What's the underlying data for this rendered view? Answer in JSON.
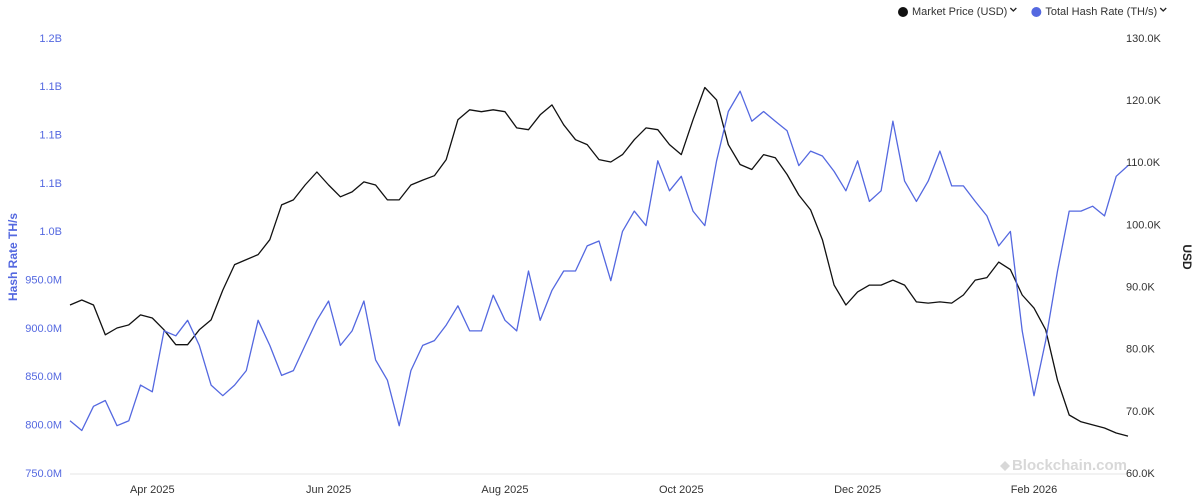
{
  "chart_data": {
    "type": "line",
    "y_label": "Hash Rate TH/s",
    "y2_label": "USD",
    "watermark": "Blockchain.com",
    "legend": "top-right",
    "categories": [
      null,
      null,
      null,
      null,
      null,
      null,
      null,
      "Apr 2025",
      null,
      null,
      null,
      null,
      null,
      null,
      null,
      null,
      null,
      null,
      null,
      null,
      null,
      null,
      "Jun 2025",
      null,
      null,
      null,
      null,
      null,
      null,
      null,
      null,
      null,
      null,
      null,
      null,
      null,
      null,
      "Aug 2025",
      null,
      null,
      null,
      null,
      null,
      null,
      null,
      null,
      null,
      null,
      null,
      null,
      null,
      null,
      "Oct 2025",
      null,
      null,
      null,
      null,
      null,
      null,
      null,
      null,
      null,
      null,
      null,
      null,
      null,
      null,
      "Dec 2025",
      null,
      null,
      null,
      null,
      null,
      null,
      null,
      null,
      null,
      null,
      null,
      null,
      null,
      null,
      "Feb 2026",
      null,
      null,
      null,
      null,
      null,
      null,
      null,
      null
    ],
    "ylim": [
      750000000,
      1200000000
    ],
    "yticks": [
      {
        "value": 750000000,
        "label": "750.0M"
      },
      {
        "value": 800000000,
        "label": "800.0M"
      },
      {
        "value": 850000000,
        "label": "850.0M"
      },
      {
        "value": 900000000,
        "label": "900.0M"
      },
      {
        "value": 950000000,
        "label": "950.0M"
      },
      {
        "value": 1000000000,
        "label": "1.0B"
      },
      {
        "value": 1050000000,
        "label": "1.1B"
      },
      {
        "value": 1100000000,
        "label": "1.1B"
      },
      {
        "value": 1150000000,
        "label": "1.1B"
      },
      {
        "value": 1200000000,
        "label": "1.2B"
      }
    ],
    "y2lim": [
      60000,
      130000
    ],
    "y2ticks": [
      {
        "value": 60000,
        "label": "60.0K"
      },
      {
        "value": 70000,
        "label": "70.0K"
      },
      {
        "value": 80000,
        "label": "80.0K"
      },
      {
        "value": 90000,
        "label": "90.0K"
      },
      {
        "value": 100000,
        "label": "100.0K"
      },
      {
        "value": 110000,
        "label": "110.0K"
      },
      {
        "value": 120000,
        "label": "120.0K"
      },
      {
        "value": 130000,
        "label": "130.0K"
      }
    ],
    "series": [
      {
        "name": "Market Price (USD)",
        "color": "#111111",
        "axis": "y2",
        "values": [
          87200,
          88000,
          87200,
          82400,
          83500,
          84000,
          85600,
          85100,
          83200,
          80800,
          80800,
          83200,
          84800,
          89600,
          93700,
          94500,
          95300,
          97700,
          103300,
          104100,
          106500,
          108600,
          106500,
          104600,
          105400,
          107000,
          106500,
          104100,
          104100,
          106500,
          107300,
          108000,
          110600,
          117000,
          118600,
          118300,
          118600,
          118300,
          115700,
          115400,
          117800,
          119400,
          116200,
          113800,
          113000,
          110600,
          110200,
          111400,
          113800,
          115700,
          115400,
          113000,
          111400,
          117000,
          122200,
          120200,
          113000,
          109800,
          109000,
          111400,
          110900,
          108200,
          104900,
          102500,
          97700,
          90400,
          87200,
          89300,
          90400,
          90400,
          91200,
          90400,
          87700,
          87500,
          87700,
          87500,
          88800,
          91200,
          91600,
          94100,
          92900,
          88800,
          86700,
          83200,
          75100,
          69500,
          68400,
          67900,
          67400,
          66600,
          66100
        ]
      },
      {
        "name": "Total Hash Rate (TH/s)",
        "color": "#5468e0",
        "axis": "y",
        "values": [
          805000000,
          795000000,
          820000000,
          826000000,
          800000000,
          805000000,
          842000000,
          835000000,
          898000000,
          893000000,
          909000000,
          883000000,
          842000000,
          831000000,
          842000000,
          857000000,
          909000000,
          883000000,
          852000000,
          857000000,
          883000000,
          909000000,
          929000000,
          883000000,
          898000000,
          929000000,
          868000000,
          847000000,
          800000000,
          857000000,
          883000000,
          888000000,
          904000000,
          924000000,
          898000000,
          898000000,
          935000000,
          909000000,
          898000000,
          960000000,
          909000000,
          940000000,
          960000000,
          960000000,
          986000000,
          991000000,
          950000000,
          1001000000,
          1022000000,
          1007000000,
          1074000000,
          1043000000,
          1058000000,
          1022000000,
          1007000000,
          1074000000,
          1125000000,
          1146000000,
          1115000000,
          1125000000,
          1115000000,
          1105000000,
          1069000000,
          1084000000,
          1079000000,
          1063000000,
          1043000000,
          1074000000,
          1032000000,
          1043000000,
          1115000000,
          1053000000,
          1032000000,
          1053000000,
          1084000000,
          1048000000,
          1048000000,
          1032000000,
          1017000000,
          986000000,
          1001000000,
          898000000,
          831000000,
          888000000,
          960000000,
          1022000000,
          1022000000,
          1027000000,
          1017000000,
          1058000000,
          1069000000
        ]
      }
    ]
  }
}
